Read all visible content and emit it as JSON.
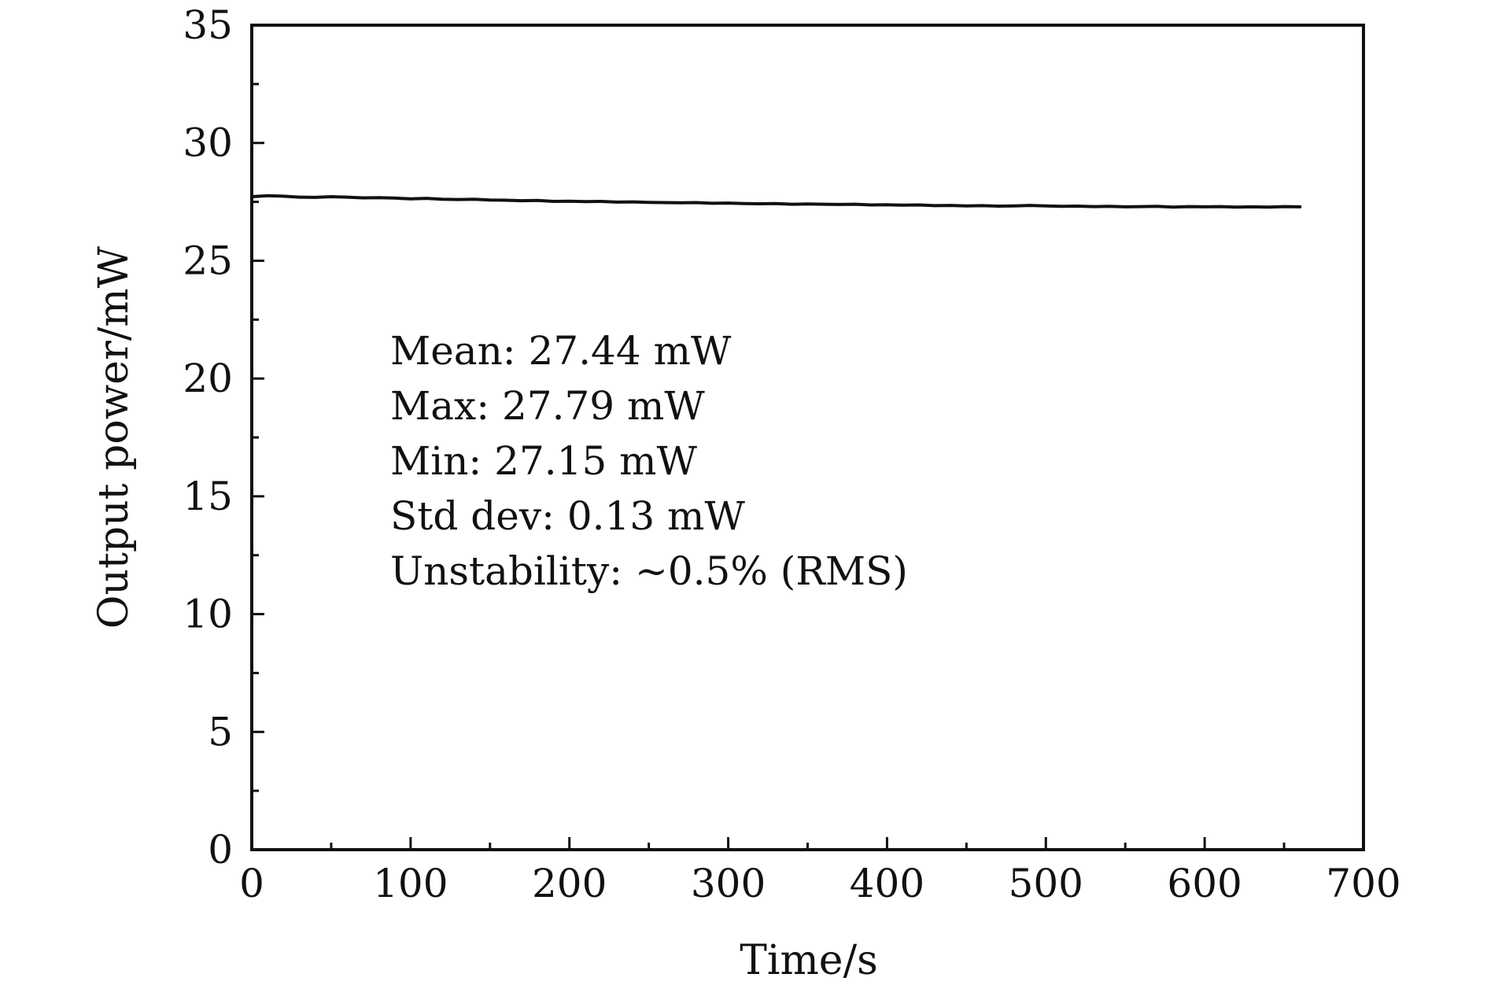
{
  "chart_data": {
    "type": "line",
    "title": "",
    "xlabel": "Time/s",
    "ylabel": "Output power/mW",
    "xlim": [
      0,
      700
    ],
    "ylim": [
      0,
      35
    ],
    "x_ticks": [
      0,
      100,
      200,
      300,
      400,
      500,
      600,
      700
    ],
    "y_ticks": [
      0,
      5,
      10,
      15,
      20,
      25,
      30,
      35
    ],
    "x_minor_step": 50,
    "y_minor_step": 2.5,
    "grid": false,
    "legend": "none",
    "line_color": "#111111",
    "series": [
      {
        "x": [
          0,
          10,
          20,
          30,
          40,
          50,
          60,
          70,
          80,
          90,
          100,
          110,
          120,
          130,
          140,
          150,
          160,
          170,
          180,
          190,
          200,
          210,
          220,
          230,
          240,
          250,
          260,
          270,
          280,
          290,
          300,
          310,
          320,
          330,
          340,
          350,
          360,
          370,
          380,
          390,
          400,
          410,
          420,
          430,
          440,
          450,
          460,
          470,
          480,
          490,
          500,
          510,
          520,
          530,
          540,
          550,
          560,
          570,
          580,
          590,
          600,
          610,
          620,
          630,
          640,
          650,
          660
        ],
        "y": [
          27.72,
          27.76,
          27.74,
          27.7,
          27.69,
          27.72,
          27.7,
          27.67,
          27.68,
          27.66,
          27.63,
          27.65,
          27.61,
          27.6,
          27.61,
          27.58,
          27.57,
          27.55,
          27.56,
          27.52,
          27.53,
          27.51,
          27.52,
          27.49,
          27.5,
          27.48,
          27.47,
          27.46,
          27.47,
          27.44,
          27.45,
          27.43,
          27.42,
          27.43,
          27.4,
          27.41,
          27.4,
          27.39,
          27.4,
          27.37,
          27.38,
          27.36,
          27.37,
          27.34,
          27.35,
          27.33,
          27.34,
          27.32,
          27.33,
          27.35,
          27.33,
          27.31,
          27.32,
          27.3,
          27.31,
          27.29,
          27.3,
          27.31,
          27.28,
          27.3,
          27.29,
          27.3,
          27.28,
          27.29,
          27.28,
          27.3,
          27.29
        ]
      }
    ],
    "annotations": [
      "Mean: 27.44 mW",
      "Max: 27.79 mW",
      "Min: 27.15 mW",
      "Std dev: 0.13 mW",
      "Unstability: ~0.5% (RMS)"
    ]
  }
}
